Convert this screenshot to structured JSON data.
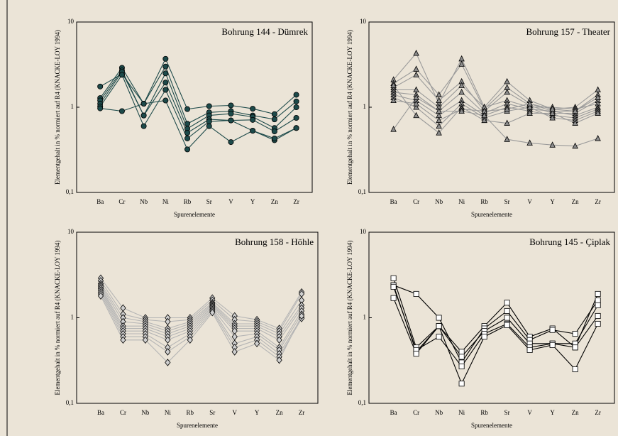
{
  "chart_data": [
    {
      "type": "line",
      "title": "Bohrung 144 - Dümrek",
      "x_label": "Spurenelemente",
      "y_label": "Elementgehalt in % normiert auf R4 (KNACKE-LOY 1994)",
      "categories": [
        "Ba",
        "Cr",
        "Nb",
        "Ni",
        "Rb",
        "Sr",
        "V",
        "Y",
        "Zn",
        "Zr"
      ],
      "log_y": true,
      "ylim": [
        0.1,
        10
      ],
      "yticks": [
        {
          "value": 0.1,
          "label": "0,1"
        },
        1,
        10
      ],
      "color": "#1d4a4a",
      "marker": "circle",
      "marker_fill": "#1d4a4a",
      "series": [
        {
          "values": [
            1.75,
            2.45,
            1.1,
            3.7,
            0.95,
            1.03,
            1.05,
            0.96,
            0.83,
            1.4
          ]
        },
        {
          "values": [
            1.28,
            2.9,
            1.1,
            3.0,
            0.64,
            0.87,
            0.9,
            0.8,
            0.72,
            1.17
          ]
        },
        {
          "values": [
            1.2,
            2.7,
            0.8,
            2.5,
            0.56,
            0.8,
            0.84,
            0.77,
            0.57,
            1.0
          ]
        },
        {
          "values": [
            1.1,
            2.6,
            0.8,
            1.95,
            0.5,
            0.72,
            0.7,
            0.71,
            0.52,
            0.75
          ]
        },
        {
          "values": [
            1.02,
            2.4,
            0.6,
            1.6,
            0.43,
            0.68,
            0.7,
            0.53,
            0.41,
            0.57
          ]
        },
        {
          "values": [
            0.97,
            0.9,
            1.1,
            1.2,
            0.32,
            0.6,
            0.39,
            0.53,
            0.43,
            0.57
          ]
        }
      ]
    },
    {
      "type": "line",
      "title": "Bohrung 157 - Theater",
      "x_label": "Spurenelemente",
      "y_label": "Elementgehalt in % normiert auf R4 (KNACKE-LOY 1994)",
      "categories": [
        "Ba",
        "Cr",
        "Nb",
        "Ni",
        "Rb",
        "Sr",
        "V",
        "Y",
        "Zn",
        "Zr"
      ],
      "log_y": true,
      "ylim": [
        0.1,
        10
      ],
      "yticks": [
        {
          "value": 0.1,
          "label": "0,1"
        },
        1,
        10
      ],
      "color": "#9a9a9a",
      "marker": "triangle",
      "marker_fill": "#8c8c8c",
      "series": [
        {
          "values": [
            2.1,
            4.3,
            1.1,
            3.7,
            1.0,
            2.0,
            1.2,
            0.95,
            1.0,
            1.6
          ]
        },
        {
          "values": [
            1.9,
            2.8,
            1.4,
            3.2,
            0.95,
            1.7,
            1.1,
            0.9,
            0.9,
            1.4
          ]
        },
        {
          "values": [
            1.7,
            2.4,
            1.2,
            2.0,
            0.9,
            1.5,
            1.05,
            0.85,
            0.85,
            1.2
          ]
        },
        {
          "values": [
            1.6,
            1.6,
            1.0,
            1.8,
            1.0,
            1.2,
            1.0,
            1.0,
            0.95,
            1.1
          ]
        },
        {
          "values": [
            1.5,
            1.4,
            0.9,
            1.5,
            0.85,
            1.1,
            0.95,
            0.9,
            0.8,
            1.0
          ]
        },
        {
          "values": [
            1.4,
            1.2,
            0.8,
            1.2,
            0.8,
            1.0,
            0.9,
            0.8,
            0.75,
            0.95
          ]
        },
        {
          "values": [
            1.3,
            1.0,
            0.6,
            1.1,
            0.75,
            0.9,
            1.0,
            0.75,
            0.7,
            0.9
          ]
        },
        {
          "values": [
            1.8,
            0.8,
            0.5,
            1.0,
            0.7,
            0.65,
            0.85,
            0.85,
            0.65,
            0.85
          ]
        },
        {
          "values": [
            1.2,
            1.1,
            0.7,
            0.95,
            0.9,
            0.95,
            1.1,
            0.95,
            0.9,
            1.3
          ]
        },
        {
          "values": [
            0.55,
            1.3,
            0.9,
            0.9,
            0.8,
            0.42,
            0.38,
            0.36,
            0.35,
            0.43
          ]
        }
      ]
    },
    {
      "type": "line",
      "title": "Bohrung 158 - Höhle",
      "x_label": "Spurenelemente",
      "y_label": "Elementgehalt in % normiert auf R4 (KNACKE-LOY 1994)",
      "categories": [
        "Ba",
        "Cr",
        "Nb",
        "Ni",
        "Rb",
        "Sr",
        "V",
        "Y",
        "Zn",
        "Zr"
      ],
      "log_y": true,
      "ylim": [
        0.1,
        10
      ],
      "yticks": [
        {
          "value": 0.1,
          "label": "0,1"
        },
        1,
        10
      ],
      "color": "#b5b5b5",
      "marker": "diamond",
      "marker_fill": "#cfcfcf",
      "series": [
        {
          "values": [
            2.9,
            1.3,
            1.0,
            1.0,
            1.0,
            1.7,
            1.05,
            0.95,
            0.75,
            2.0
          ]
        },
        {
          "values": [
            2.7,
            1.1,
            0.95,
            0.9,
            0.95,
            1.6,
            0.95,
            0.9,
            0.7,
            1.9
          ]
        },
        {
          "values": [
            2.5,
            1.0,
            0.9,
            0.75,
            0.9,
            1.5,
            0.85,
            0.85,
            0.65,
            1.6
          ]
        },
        {
          "values": [
            2.4,
            0.9,
            0.85,
            0.7,
            0.85,
            1.45,
            0.8,
            0.8,
            0.6,
            1.4
          ]
        },
        {
          "values": [
            2.3,
            0.8,
            0.8,
            0.65,
            0.8,
            1.4,
            0.75,
            0.75,
            0.55,
            1.3
          ]
        },
        {
          "values": [
            2.2,
            0.75,
            0.75,
            0.6,
            0.75,
            1.35,
            0.7,
            0.7,
            0.45,
            1.2
          ]
        },
        {
          "values": [
            2.1,
            0.7,
            0.7,
            0.55,
            0.7,
            1.3,
            0.6,
            0.65,
            0.42,
            1.1
          ]
        },
        {
          "values": [
            2.0,
            0.65,
            0.65,
            0.45,
            0.65,
            1.25,
            0.5,
            0.6,
            0.38,
            1.0
          ]
        },
        {
          "values": [
            1.9,
            0.6,
            0.6,
            0.4,
            0.6,
            1.2,
            0.45,
            0.55,
            0.35,
            0.98
          ]
        },
        {
          "values": [
            1.8,
            0.55,
            0.55,
            0.3,
            0.55,
            1.15,
            0.4,
            0.5,
            0.32,
            1.05
          ]
        }
      ]
    },
    {
      "type": "line",
      "title": "Bohrung 145 - Çiplak",
      "x_label": "Spurenelemente",
      "y_label": "Elementgehalt in % normiert auf R4 (KNACKE-LOY 1994)",
      "categories": [
        "Ba",
        "Cr",
        "Nb",
        "Ni",
        "Rb",
        "Sr",
        "V",
        "Y",
        "Zn",
        "Zr"
      ],
      "log_y": true,
      "ylim": [
        0.1,
        10
      ],
      "yticks": [
        {
          "value": 0.1,
          "label": "0,1"
        },
        1,
        10
      ],
      "color": "#000000",
      "marker": "square",
      "marker_fill": "#ffffff",
      "series": [
        {
          "values": [
            2.9,
            0.45,
            0.8,
            0.4,
            0.8,
            1.5,
            0.6,
            0.75,
            0.45,
            1.9
          ]
        },
        {
          "values": [
            2.4,
            1.9,
            1.0,
            0.3,
            0.75,
            1.2,
            0.55,
            0.72,
            0.65,
            1.6
          ]
        },
        {
          "values": [
            2.4,
            0.4,
            0.8,
            0.35,
            0.7,
            1.0,
            0.5,
            0.5,
            0.5,
            1.4
          ]
        },
        {
          "values": [
            2.3,
            0.42,
            0.6,
            0.27,
            0.65,
            0.85,
            0.45,
            0.5,
            0.45,
            1.05
          ]
        },
        {
          "values": [
            1.7,
            0.38,
            0.8,
            0.17,
            0.6,
            0.82,
            0.42,
            0.48,
            0.25,
            0.85
          ]
        }
      ]
    }
  ]
}
